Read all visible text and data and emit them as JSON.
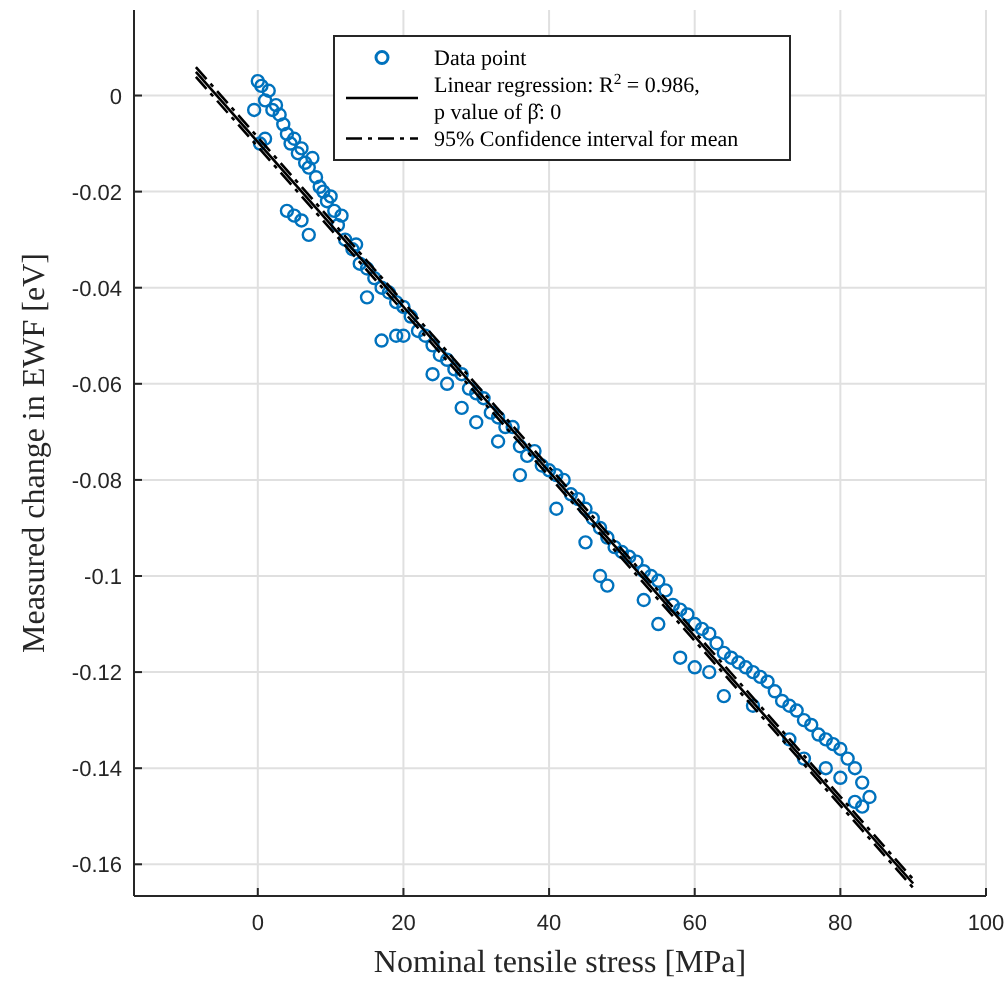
{
  "chart_data": {
    "type": "scatter",
    "xlabel": "Nominal tensile stress [MPa]",
    "ylabel": "Measured change in EWF [eV]",
    "xlim": [
      -17,
      100
    ],
    "xticks": [
      0,
      20,
      40,
      60,
      80,
      100
    ],
    "ylim": [
      -0.1666,
      0.0178
    ],
    "yticks": [
      {
        "value": 0,
        "label": "0"
      },
      {
        "value": -0.02,
        "label": "-0.02"
      },
      {
        "value": -0.04,
        "label": "-0.04"
      },
      {
        "value": -0.06,
        "label": "-0.06"
      },
      {
        "value": -0.08,
        "label": "-0.08"
      },
      {
        "value": -0.1,
        "label": "-0.1"
      },
      {
        "value": -0.12,
        "label": "-0.12"
      },
      {
        "value": -0.14,
        "label": "-0.14"
      },
      {
        "value": -0.16,
        "label": "-0.16"
      }
    ],
    "grid": true,
    "legend": "top",
    "series": [
      {
        "name": "Data point",
        "marker": "circle",
        "color": "#0072bd",
        "x": [
          0,
          0.5,
          1,
          1.5,
          2,
          2.5,
          3,
          0.3,
          -0.5,
          1,
          3.5,
          4,
          4.5,
          5,
          5.5,
          6,
          6.5,
          7,
          7.5,
          8,
          8.5,
          9,
          9.5,
          10,
          10.5,
          11,
          4,
          5,
          6,
          7,
          11.5,
          12,
          13,
          14,
          13.5,
          15,
          16,
          17,
          18,
          19,
          20,
          21,
          22,
          15,
          17,
          19,
          20,
          23,
          24,
          25,
          26,
          27,
          24,
          26,
          28,
          29,
          30,
          31,
          28,
          32,
          33,
          30,
          34,
          35,
          33,
          36,
          37,
          38,
          39,
          36,
          40,
          41,
          42,
          43,
          44,
          41,
          45,
          46,
          47,
          48,
          45,
          49,
          50,
          47,
          48,
          51,
          52,
          53,
          54,
          55,
          56,
          53,
          57,
          58,
          55,
          59,
          60,
          58,
          61,
          62,
          60,
          63,
          64,
          62,
          65,
          66,
          67,
          64,
          68,
          69,
          70,
          71,
          68,
          72,
          73,
          74,
          75,
          73,
          76,
          77,
          78,
          79,
          75,
          80,
          81,
          82,
          83,
          84,
          82,
          80,
          78,
          83
        ],
        "values": [
          0.003,
          0.002,
          -0.001,
          0.001,
          -0.003,
          -0.002,
          -0.004,
          -0.01,
          -0.003,
          -0.009,
          -0.006,
          -0.008,
          -0.01,
          -0.009,
          -0.012,
          -0.011,
          -0.014,
          -0.015,
          -0.013,
          -0.017,
          -0.019,
          -0.02,
          -0.022,
          -0.021,
          -0.024,
          -0.027,
          -0.024,
          -0.025,
          -0.026,
          -0.029,
          -0.025,
          -0.03,
          -0.032,
          -0.035,
          -0.031,
          -0.036,
          -0.038,
          -0.04,
          -0.041,
          -0.043,
          -0.044,
          -0.046,
          -0.049,
          -0.042,
          -0.051,
          -0.05,
          -0.05,
          -0.05,
          -0.052,
          -0.054,
          -0.055,
          -0.057,
          -0.058,
          -0.06,
          -0.058,
          -0.061,
          -0.062,
          -0.063,
          -0.065,
          -0.066,
          -0.067,
          -0.068,
          -0.069,
          -0.069,
          -0.072,
          -0.073,
          -0.075,
          -0.074,
          -0.077,
          -0.079,
          -0.078,
          -0.079,
          -0.08,
          -0.083,
          -0.084,
          -0.086,
          -0.086,
          -0.088,
          -0.09,
          -0.092,
          -0.093,
          -0.094,
          -0.095,
          -0.1,
          -0.102,
          -0.096,
          -0.097,
          -0.099,
          -0.1,
          -0.101,
          -0.103,
          -0.105,
          -0.106,
          -0.107,
          -0.11,
          -0.108,
          -0.11,
          -0.117,
          -0.111,
          -0.112,
          -0.119,
          -0.114,
          -0.116,
          -0.12,
          -0.117,
          -0.118,
          -0.119,
          -0.125,
          -0.12,
          -0.121,
          -0.122,
          -0.124,
          -0.127,
          -0.126,
          -0.127,
          -0.128,
          -0.13,
          -0.134,
          -0.131,
          -0.133,
          -0.134,
          -0.135,
          -0.138,
          -0.136,
          -0.138,
          -0.14,
          -0.143,
          -0.146,
          -0.147,
          -0.142,
          -0.14,
          -0.148
        ]
      },
      {
        "name": "Linear regression: R$^{2}$ = 0.986,\np value of β̂: 0",
        "type": "line",
        "color": "#000000",
        "line_style": "solid",
        "x": [
          -8.5,
          90
        ],
        "values": [
          0.0049,
          -0.164
        ]
      },
      {
        "name": "95% Confidence interval for mean",
        "type": "line",
        "color": "#000000",
        "line_style": "dashed",
        "x": [
          -8.5,
          90
        ],
        "values": [
          0.0059,
          -0.1631
        ]
      },
      {
        "type": "line",
        "color": "#000000",
        "line_style": "dashed",
        "x": [
          -8.5,
          90
        ],
        "values": [
          0.0039,
          -0.1649
        ]
      }
    ]
  }
}
